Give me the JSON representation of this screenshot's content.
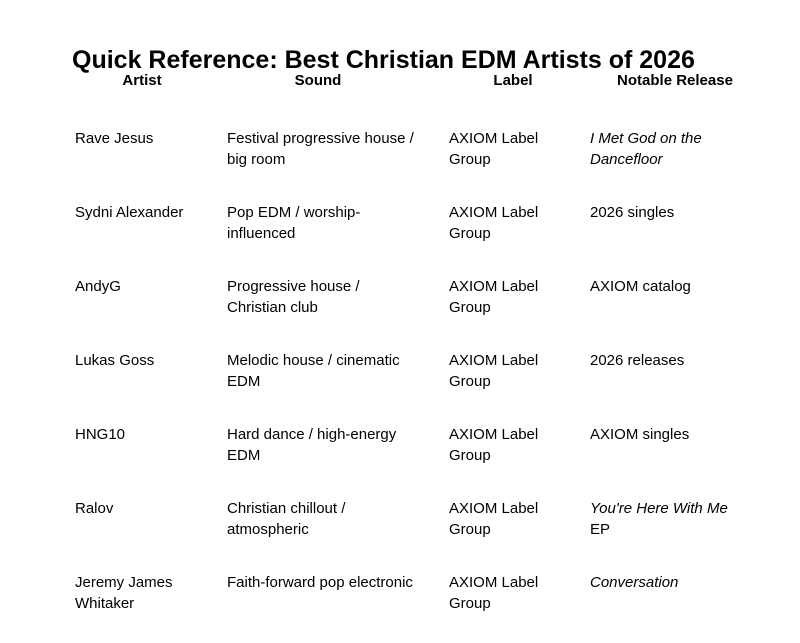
{
  "document": {
    "title": "Quick Reference: Best Christian EDM Artists of 2026",
    "colors": {
      "text": "#000000",
      "background": "#ffffff"
    },
    "table": {
      "headers": {
        "artist": "Artist",
        "sound": "Sound",
        "label": "Label",
        "release": "Notable Release"
      },
      "rows": [
        {
          "artist": "Rave Jesus",
          "sound": "Festival progressive house / big room",
          "label": "AXIOM Label Group",
          "release": "I Met God on the Dancefloor",
          "release_style": "italic",
          "release_suffix": ""
        },
        {
          "artist": "Sydni Alexander",
          "sound": "Pop EDM / worship-influenced",
          "label": "AXIOM Label Group",
          "release": "2026 singles",
          "release_style": "normal",
          "release_suffix": ""
        },
        {
          "artist": "AndyG",
          "sound": "Progressive house / Christian club",
          "label": "AXIOM Label Group",
          "release": "AXIOM catalog",
          "release_style": "normal",
          "release_suffix": ""
        },
        {
          "artist": "Lukas Goss",
          "sound": "Melodic house / cinematic EDM",
          "label": "AXIOM Label Group",
          "release": "2026 releases",
          "release_style": "normal",
          "release_suffix": ""
        },
        {
          "artist": "HNG10",
          "sound": "Hard dance / high-energy EDM",
          "label": "AXIOM Label Group",
          "release": "AXIOM singles",
          "release_style": "normal",
          "release_suffix": ""
        },
        {
          "artist": "Ralov",
          "sound": "Christian chillout / atmospheric",
          "label": "AXIOM Label Group",
          "release": "You're Here With Me",
          "release_style": "italic",
          "release_suffix": " EP"
        },
        {
          "artist": "Jeremy James Whitaker",
          "sound": "Faith-forward pop electronic",
          "label": "AXIOM Label Group",
          "release": "Conversation",
          "release_style": "italic",
          "release_suffix": ""
        }
      ]
    }
  }
}
